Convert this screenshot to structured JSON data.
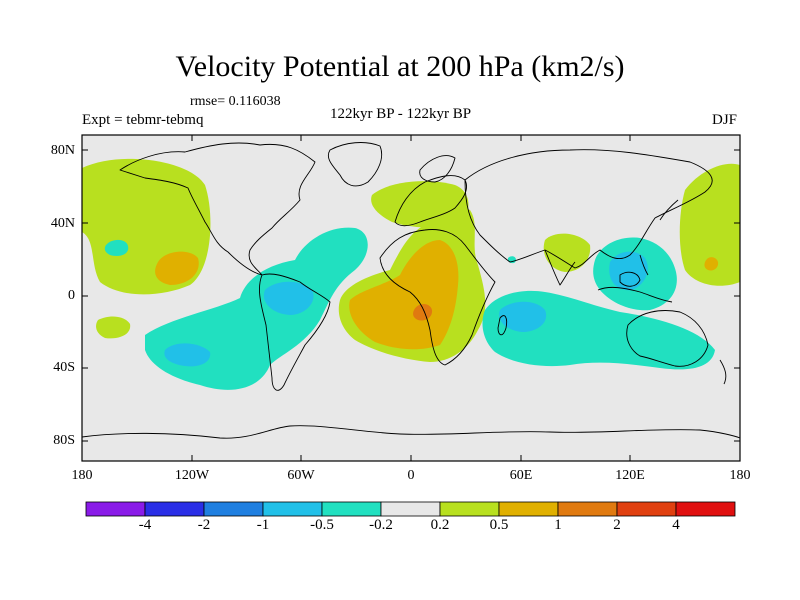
{
  "title": "Velocity Potential at 200 hPa (km2/s)",
  "rmse_label": "rmse= 0.116038",
  "center_label": "122kyr BP - 122kyr BP",
  "expt_label": "Expt = tebmr-tebmq",
  "season_label": "DJF",
  "lat_labels": [
    "80N",
    "40N",
    "0",
    "40S",
    "80S"
  ],
  "lon_labels": [
    "180",
    "120W",
    "60W",
    "0",
    "60E",
    "120E",
    "180"
  ],
  "colorbar": {
    "colors": [
      "#8a1be8",
      "#2a2ee6",
      "#1f7fe0",
      "#21c0e8",
      "#21e0c0",
      "#e8e8e8",
      "#b8e01f",
      "#e0b000",
      "#e07a10",
      "#e04010",
      "#e01010"
    ],
    "labels": [
      "-4",
      "-2",
      "-1",
      "-0.5",
      "-0.2",
      "0.2",
      "0.5",
      "1",
      "2",
      "4"
    ]
  },
  "map_colors": {
    "background": "#e8e8e8",
    "pos_weak": "#b8e01f",
    "pos_mid": "#e0b000",
    "pos_strong": "#e07a10",
    "neg_weak": "#21e0c0",
    "neg_mid": "#21c0e8"
  }
}
